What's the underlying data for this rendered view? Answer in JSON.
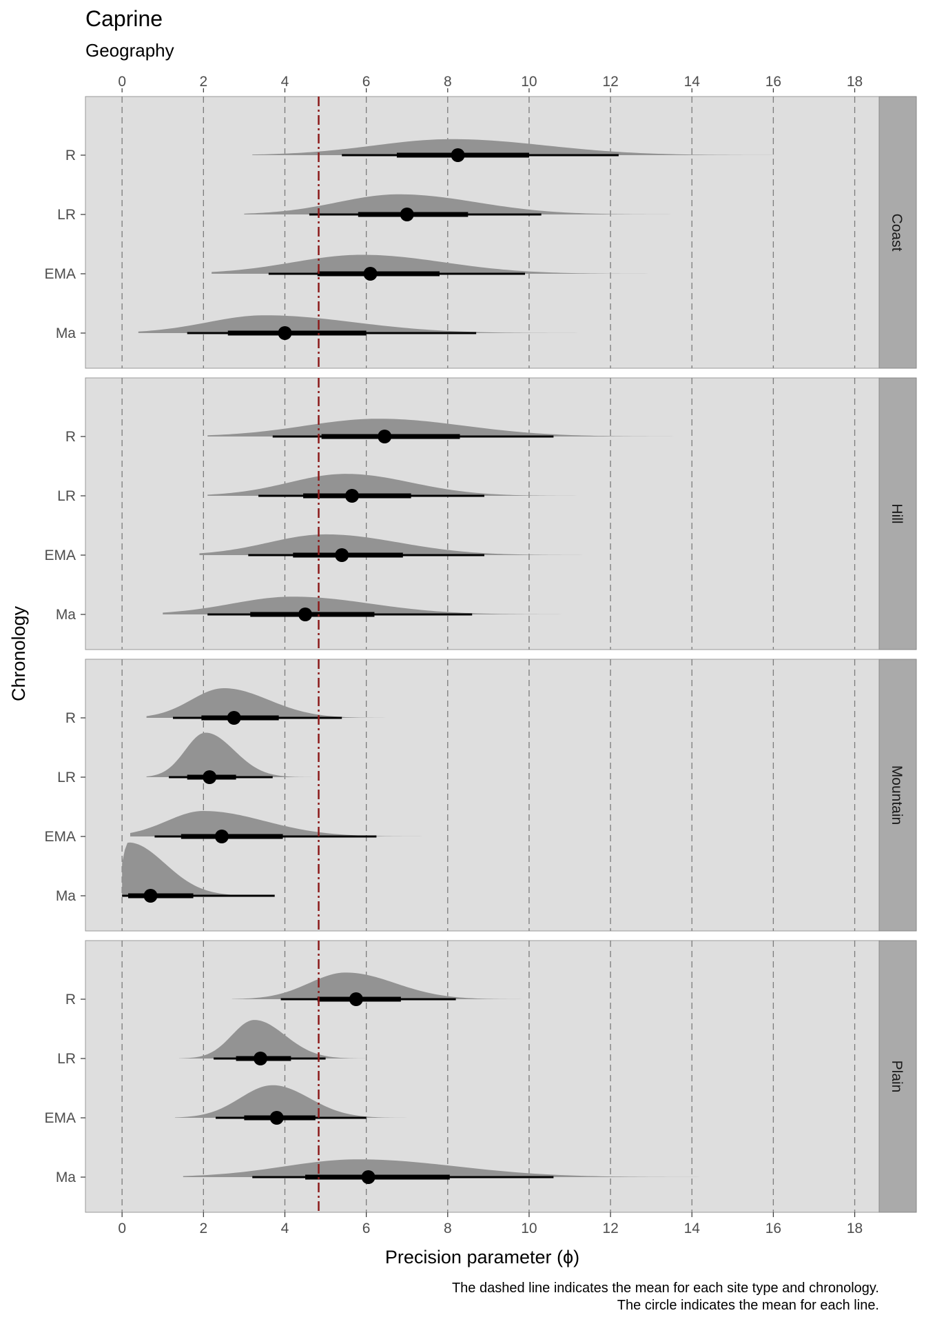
{
  "chart_data": {
    "type": "halfeye",
    "title": "Caprine",
    "subtitle": "Geography",
    "xlabel": "Precision parameter (ϕ)",
    "ylabel": "Chronology",
    "xlim": [
      -0.9,
      18.6
    ],
    "xticks": [
      0,
      2,
      4,
      6,
      8,
      10,
      12,
      14,
      16,
      18
    ],
    "categories": [
      "R",
      "LR",
      "EMA",
      "Ma"
    ],
    "reference_line": {
      "x": 4.83,
      "color": "#8b1a1a",
      "style": "dotdash"
    },
    "grid": true,
    "facets": [
      {
        "name": "Coast",
        "rows": [
          {
            "label": "R",
            "mean": 8.25,
            "interval66": [
              6.75,
              10.0
            ],
            "interval95": [
              5.4,
              12.2
            ],
            "dens_range": [
              3.2,
              16.5
            ],
            "mode": 8.1,
            "sd_left": 1.9,
            "sd_right": 2.3,
            "height": 0.27
          },
          {
            "label": "LR",
            "mean": 7.0,
            "interval66": [
              5.8,
              8.5
            ],
            "interval95": [
              4.6,
              10.3
            ],
            "dens_range": [
              3.0,
              13.5
            ],
            "mode": 6.8,
            "sd_left": 1.5,
            "sd_right": 1.9,
            "height": 0.34
          },
          {
            "label": "EMA",
            "mean": 6.1,
            "interval66": [
              4.8,
              7.8
            ],
            "interval95": [
              3.6,
              9.9
            ],
            "dens_range": [
              2.2,
              13.5
            ],
            "mode": 5.9,
            "sd_left": 1.7,
            "sd_right": 2.0,
            "height": 0.32
          },
          {
            "label": "Ma",
            "mean": 4.0,
            "interval66": [
              2.6,
              6.0
            ],
            "interval95": [
              1.6,
              8.7
            ],
            "dens_range": [
              0.4,
              13.0
            ],
            "mode": 3.5,
            "sd_left": 1.4,
            "sd_right": 2.2,
            "height": 0.3
          }
        ]
      },
      {
        "name": "Hill",
        "rows": [
          {
            "label": "R",
            "mean": 6.45,
            "interval66": [
              4.9,
              8.3
            ],
            "interval95": [
              3.7,
              10.6
            ],
            "dens_range": [
              2.1,
              14.5
            ],
            "mode": 6.3,
            "sd_left": 1.8,
            "sd_right": 2.1,
            "height": 0.3
          },
          {
            "label": "LR",
            "mean": 5.65,
            "interval66": [
              4.45,
              7.1
            ],
            "interval95": [
              3.35,
              8.9
            ],
            "dens_range": [
              2.1,
              12.0
            ],
            "mode": 5.5,
            "sd_left": 1.4,
            "sd_right": 1.6,
            "height": 0.37
          },
          {
            "label": "EMA",
            "mean": 5.4,
            "interval66": [
              4.2,
              6.9
            ],
            "interval95": [
              3.1,
              8.9
            ],
            "dens_range": [
              1.9,
              12.0
            ],
            "mode": 5.0,
            "sd_left": 1.4,
            "sd_right": 1.8,
            "height": 0.35
          },
          {
            "label": "Ma",
            "mean": 4.5,
            "interval66": [
              3.15,
              6.2
            ],
            "interval95": [
              2.1,
              8.6
            ],
            "dens_range": [
              1.0,
              12.0
            ],
            "mode": 4.2,
            "sd_left": 1.5,
            "sd_right": 1.9,
            "height": 0.3
          }
        ]
      },
      {
        "name": "Mountain",
        "rows": [
          {
            "label": "R",
            "mean": 2.75,
            "interval66": [
              1.95,
              3.85
            ],
            "interval95": [
              1.25,
              5.4
            ],
            "dens_range": [
              0.6,
              9.0
            ],
            "mode": 2.5,
            "sd_left": 0.8,
            "sd_right": 1.1,
            "height": 0.5
          },
          {
            "label": "LR",
            "mean": 2.15,
            "interval66": [
              1.6,
              2.8
            ],
            "interval95": [
              1.15,
              3.7
            ],
            "dens_range": [
              0.6,
              5.6
            ],
            "mode": 2.05,
            "sd_left": 0.5,
            "sd_right": 0.7,
            "height": 0.75
          },
          {
            "label": "EMA",
            "mean": 2.45,
            "interval66": [
              1.45,
              3.95
            ],
            "interval95": [
              0.8,
              6.25
            ],
            "dens_range": [
              0.2,
              10.0
            ],
            "mode": 2.0,
            "sd_left": 0.9,
            "sd_right": 1.5,
            "height": 0.43
          },
          {
            "label": "Ma",
            "mean": 0.7,
            "interval66": [
              0.15,
              1.75
            ],
            "interval95": [
              0.0,
              3.75
            ],
            "dens_range": [
              0.0,
              8.0
            ],
            "mode": 0.15,
            "sd_left": 0.15,
            "sd_right": 0.9,
            "height": 0.9
          }
        ]
      },
      {
        "name": "Plain",
        "rows": [
          {
            "label": "R",
            "mean": 5.75,
            "interval66": [
              4.8,
              6.85
            ],
            "interval95": [
              3.9,
              8.2
            ],
            "dens_range": [
              2.7,
              11.0
            ],
            "mode": 5.5,
            "sd_left": 0.9,
            "sd_right": 1.2,
            "height": 0.45
          },
          {
            "label": "LR",
            "mean": 3.4,
            "interval66": [
              2.8,
              4.15
            ],
            "interval95": [
              2.25,
              5.0
            ],
            "dens_range": [
              1.4,
              7.0
            ],
            "mode": 3.25,
            "sd_left": 0.55,
            "sd_right": 0.75,
            "height": 0.65
          },
          {
            "label": "EMA",
            "mean": 3.8,
            "interval66": [
              3.0,
              4.75
            ],
            "interval95": [
              2.3,
              6.0
            ],
            "dens_range": [
              1.3,
              8.5
            ],
            "mode": 3.7,
            "sd_left": 0.8,
            "sd_right": 0.9,
            "height": 0.55
          },
          {
            "label": "Ma",
            "mean": 6.05,
            "interval66": [
              4.5,
              8.05
            ],
            "interval95": [
              3.2,
              10.6
            ],
            "dens_range": [
              1.5,
              15.5
            ],
            "mode": 5.8,
            "sd_left": 1.8,
            "sd_right": 2.4,
            "height": 0.3
          }
        ]
      }
    ],
    "colors": {
      "panel_bg": "#dedede",
      "strip_bg": "#aaaaaa",
      "density": "#939393",
      "interval": "#000000",
      "gridline": "#7a7a7a",
      "reference": "#8b1a1a"
    },
    "caption": [
      "The dashed line indicates the mean for each site type and chronology.",
      "The circle indicates the mean for each line."
    ]
  }
}
